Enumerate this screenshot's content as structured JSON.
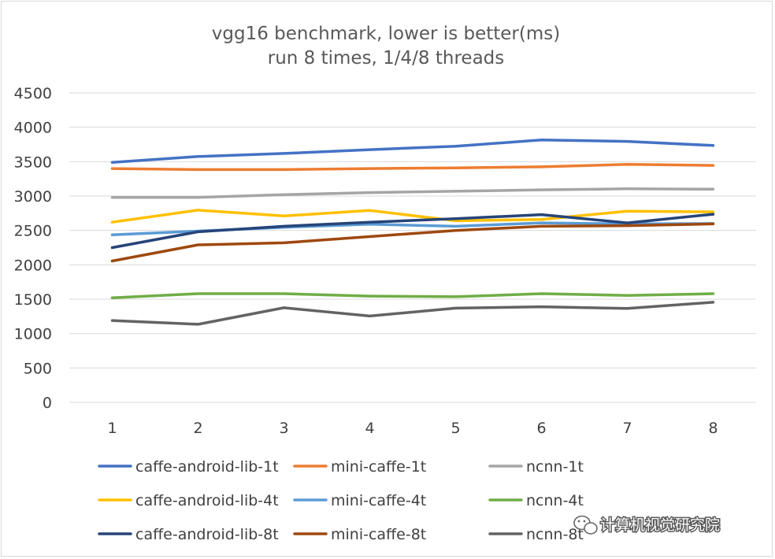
{
  "chart_data": {
    "type": "line",
    "title": "vgg16 benchmark, lower is better(ms)",
    "subtitle": "run 8 times, 1/4/8 threads",
    "xlabel": "",
    "ylabel": "",
    "categories": [
      "1",
      "2",
      "3",
      "4",
      "5",
      "6",
      "7",
      "8"
    ],
    "ylim": [
      0,
      4500
    ],
    "yticks": [
      0,
      500,
      1000,
      1500,
      2000,
      2500,
      3000,
      3500,
      4000,
      4500
    ],
    "grid": true,
    "legend_position": "bottom",
    "series": [
      {
        "name": "caffe-android-lib-1t",
        "color": "#4472c4",
        "values": [
          3490,
          3575,
          3620,
          3675,
          3725,
          3815,
          3795,
          3735
        ]
      },
      {
        "name": "mini-caffe-1t",
        "color": "#ed7d31",
        "values": [
          3400,
          3385,
          3385,
          3400,
          3410,
          3425,
          3460,
          3445
        ]
      },
      {
        "name": "ncnn-1t",
        "color": "#a5a5a5",
        "values": [
          2980,
          2980,
          3020,
          3050,
          3070,
          3090,
          3105,
          3100
        ]
      },
      {
        "name": "caffe-android-lib-4t",
        "color": "#ffc000",
        "values": [
          2620,
          2795,
          2710,
          2790,
          2640,
          2660,
          2780,
          2770
        ]
      },
      {
        "name": "mini-caffe-4t",
        "color": "#5b9bd5",
        "values": [
          2435,
          2490,
          2545,
          2590,
          2560,
          2610,
          2595,
          2600
        ]
      },
      {
        "name": "ncnn-4t",
        "color": "#70ad47",
        "values": [
          1520,
          1580,
          1580,
          1545,
          1535,
          1580,
          1555,
          1580
        ]
      },
      {
        "name": "caffe-android-lib-8t",
        "color": "#264478",
        "values": [
          2250,
          2480,
          2560,
          2620,
          2670,
          2730,
          2610,
          2735
        ]
      },
      {
        "name": "mini-caffe-8t",
        "color": "#9e480e",
        "values": [
          2055,
          2290,
          2320,
          2410,
          2500,
          2560,
          2570,
          2595
        ]
      },
      {
        "name": "ncnn-8t",
        "color": "#636363",
        "values": [
          1190,
          1135,
          1375,
          1255,
          1370,
          1390,
          1365,
          1455
        ]
      }
    ]
  },
  "watermark": {
    "text": "计算机视觉研究院",
    "icon": "wechat-icon"
  }
}
